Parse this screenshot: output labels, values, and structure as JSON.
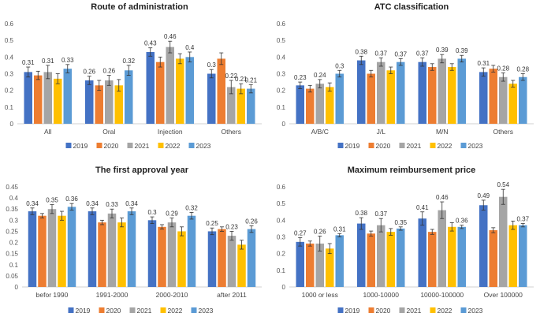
{
  "colors": {
    "2019": "#4472c4",
    "2020": "#ed7d31",
    "2021": "#a5a5a5",
    "2022": "#ffc000",
    "2023": "#5b9bd5"
  },
  "chart_data": [
    {
      "type": "bar",
      "title": "Route of administration",
      "ylim": [
        0,
        0.6
      ],
      "yticks": [
        "0",
        "0.1",
        "0.2",
        "0.3",
        "0.4",
        "0.5",
        "0.6"
      ],
      "categories": [
        "All",
        "Oral",
        "Injection",
        "Others"
      ],
      "series": [
        {
          "name": "2019",
          "values": [
            0.31,
            0.26,
            0.43,
            0.3
          ],
          "errors": [
            0.03,
            0.025,
            0.025,
            0.025
          ]
        },
        {
          "name": "2020",
          "values": [
            0.29,
            0.23,
            0.37,
            0.39
          ],
          "errors": [
            0.025,
            0.03,
            0.03,
            0.035
          ]
        },
        {
          "name": "2021",
          "values": [
            0.31,
            0.26,
            0.46,
            0.22
          ],
          "errors": [
            0.04,
            0.03,
            0.035,
            0.04
          ]
        },
        {
          "name": "2022",
          "values": [
            0.27,
            0.23,
            0.39,
            0.21
          ],
          "errors": [
            0.03,
            0.035,
            0.03,
            0.03
          ]
        },
        {
          "name": "2023",
          "values": [
            0.33,
            0.32,
            0.4,
            0.21
          ],
          "errors": [
            0.025,
            0.03,
            0.03,
            0.025
          ]
        }
      ],
      "labels": [
        [
          "0.31",
          "0.26",
          "0.43",
          "0.3"
        ],
        [
          "",
          "",
          "",
          ""
        ],
        [
          "0.31",
          "0.26",
          "0.46",
          "0.22"
        ],
        [
          "",
          "",
          "",
          "0.21"
        ],
        [
          "0.33",
          "0.32",
          "0.4",
          "0.21"
        ]
      ],
      "legend": [
        "2019",
        "2020",
        "2021",
        "2022",
        "2023"
      ]
    },
    {
      "type": "bar",
      "title": "ATC classification",
      "ylim": [
        0,
        0.6
      ],
      "yticks": [
        "0",
        "0.1",
        "0.2",
        "0.3",
        "0.4",
        "0.5",
        "0.6"
      ],
      "categories": [
        "A/B/C",
        "J/L",
        "M/N",
        "Others"
      ],
      "series": [
        {
          "name": "2019",
          "values": [
            0.23,
            0.38,
            0.37,
            0.31
          ],
          "errors": [
            0.02,
            0.025,
            0.025,
            0.025
          ]
        },
        {
          "name": "2020",
          "values": [
            0.21,
            0.3,
            0.34,
            0.33
          ],
          "errors": [
            0.02,
            0.02,
            0.02,
            0.02
          ]
        },
        {
          "name": "2021",
          "values": [
            0.24,
            0.37,
            0.39,
            0.28
          ],
          "errors": [
            0.025,
            0.025,
            0.025,
            0.025
          ]
        },
        {
          "name": "2022",
          "values": [
            0.22,
            0.32,
            0.34,
            0.24
          ],
          "errors": [
            0.025,
            0.02,
            0.02,
            0.02
          ]
        },
        {
          "name": "2023",
          "values": [
            0.3,
            0.37,
            0.39,
            0.28
          ],
          "errors": [
            0.02,
            0.02,
            0.02,
            0.02
          ]
        }
      ],
      "labels": [
        [
          "0.23",
          "0.38",
          "0.37",
          "0.31"
        ],
        [
          "",
          "",
          "",
          ""
        ],
        [
          "0.24",
          "0.37",
          "0.39",
          "0.28"
        ],
        [
          "",
          "",
          "",
          ""
        ],
        [
          "0.3",
          "0.37",
          "0.39",
          "0.28"
        ]
      ],
      "legend": [
        "2019",
        "2020",
        "2021",
        "2022",
        "2023"
      ]
    },
    {
      "type": "bar",
      "title": "The first approval year",
      "ylim": [
        0,
        0.45
      ],
      "yticks": [
        "0",
        "0.05",
        "0.1",
        "0.15",
        "0.2",
        "0.25",
        "0.3",
        "0.35",
        "0.4",
        "0.45"
      ],
      "categories": [
        "befor 1990",
        "1991-2000",
        "2000-2010",
        "after 2011"
      ],
      "series": [
        {
          "name": "2019",
          "values": [
            0.34,
            0.34,
            0.3,
            0.25
          ],
          "errors": [
            0.015,
            0.015,
            0.015,
            0.015
          ]
        },
        {
          "name": "2020",
          "values": [
            0.32,
            0.29,
            0.27,
            0.26
          ],
          "errors": [
            0.01,
            0.01,
            0.01,
            0.01
          ]
        },
        {
          "name": "2021",
          "values": [
            0.35,
            0.33,
            0.29,
            0.23
          ],
          "errors": [
            0.02,
            0.02,
            0.02,
            0.02
          ]
        },
        {
          "name": "2022",
          "values": [
            0.32,
            0.29,
            0.25,
            0.19
          ],
          "errors": [
            0.02,
            0.02,
            0.02,
            0.02
          ]
        },
        {
          "name": "2023",
          "values": [
            0.36,
            0.34,
            0.32,
            0.26
          ],
          "errors": [
            0.015,
            0.015,
            0.015,
            0.015
          ]
        }
      ],
      "labels": [
        [
          "0.34",
          "0.34",
          "0.3",
          "0.25"
        ],
        [
          "",
          "",
          "",
          ""
        ],
        [
          "0.35",
          "0.33",
          "0.29",
          "0.23"
        ],
        [
          "",
          "",
          "",
          ""
        ],
        [
          "0.36",
          "0.34",
          "0.32",
          "0.26"
        ]
      ],
      "legend": [
        "2019",
        "2020",
        "2021",
        "2022",
        "2023"
      ]
    },
    {
      "type": "bar",
      "title": "Maximum reimbursement price",
      "ylim": [
        0,
        0.6
      ],
      "yticks": [
        "0",
        "0.1",
        "0.2",
        "0.3",
        "0.4",
        "0.5",
        "0.6"
      ],
      "categories": [
        "1000 or less",
        "1000-10000",
        "10000-100000",
        "Over 100000"
      ],
      "series": [
        {
          "name": "2019",
          "values": [
            0.27,
            0.38,
            0.41,
            0.49
          ],
          "errors": [
            0.025,
            0.035,
            0.04,
            0.03
          ]
        },
        {
          "name": "2020",
          "values": [
            0.26,
            0.32,
            0.33,
            0.34
          ],
          "errors": [
            0.015,
            0.015,
            0.015,
            0.015
          ]
        },
        {
          "name": "2021",
          "values": [
            0.26,
            0.37,
            0.46,
            0.54
          ],
          "errors": [
            0.045,
            0.04,
            0.05,
            0.045
          ]
        },
        {
          "name": "2022",
          "values": [
            0.23,
            0.33,
            0.36,
            0.37
          ],
          "errors": [
            0.03,
            0.02,
            0.025,
            0.025
          ]
        },
        {
          "name": "2023",
          "values": [
            0.31,
            0.35,
            0.36,
            0.37
          ],
          "errors": [
            0.01,
            0.01,
            0.01,
            0.01
          ]
        }
      ],
      "labels": [
        [
          "0.27",
          "0.38",
          "0.41",
          "0.49"
        ],
        [
          "",
          "",
          "",
          ""
        ],
        [
          "0.26",
          "0.37",
          "0.46",
          "0.54"
        ],
        [
          "",
          "",
          "",
          ""
        ],
        [
          "0.31",
          "0.35",
          "0.36",
          "0.37"
        ]
      ],
      "legend": [
        "2019",
        "2020",
        "2021",
        "2022",
        "2023"
      ]
    }
  ]
}
